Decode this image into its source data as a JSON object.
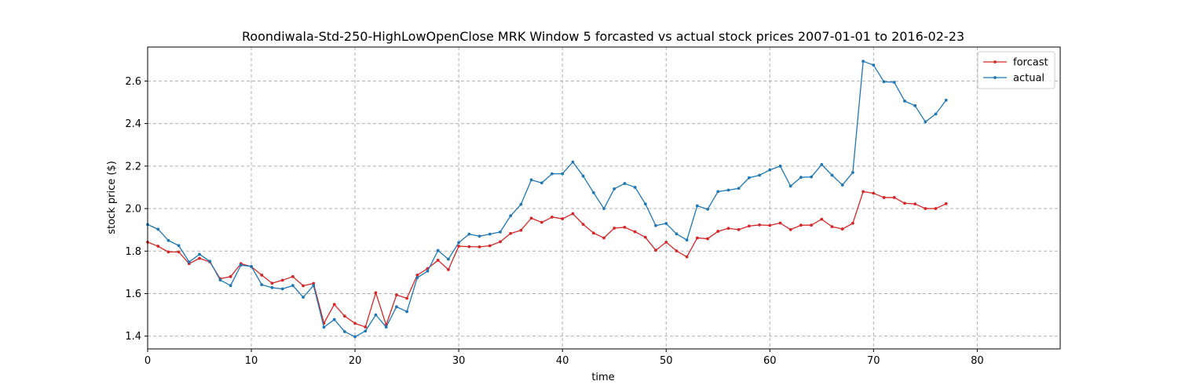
{
  "chart_data": {
    "type": "line",
    "title": "Roondiwala-Std-250-HighLowOpenClose MRK Window 5 forcasted vs actual stock prices 2007-01-01 to 2016-02-23",
    "xlabel": "time",
    "ylabel": "stock price ($)",
    "xlim": [
      0,
      88
    ],
    "ylim": [
      1.34,
      2.76
    ],
    "xticks": [
      0,
      10,
      20,
      30,
      40,
      50,
      60,
      70,
      80
    ],
    "yticks": [
      1.4,
      1.6,
      1.8,
      2.0,
      2.2,
      2.4,
      2.6
    ],
    "xtick_labels": [
      "0",
      "10",
      "20",
      "30",
      "40",
      "50",
      "60",
      "70",
      "80"
    ],
    "ytick_labels": [
      "1.4",
      "1.6",
      "1.8",
      "2.0",
      "2.2",
      "2.4",
      "2.6"
    ],
    "grid": true,
    "legend_position": "top-right",
    "series": [
      {
        "name": "forcast",
        "color": "#d62728",
        "values": [
          1.842,
          1.823,
          1.796,
          1.796,
          1.741,
          1.766,
          1.749,
          1.67,
          1.68,
          1.741,
          1.727,
          1.687,
          1.649,
          1.663,
          1.68,
          1.637,
          1.648,
          1.461,
          1.549,
          1.494,
          1.46,
          1.443,
          1.604,
          1.452,
          1.594,
          1.578,
          1.687,
          1.718,
          1.757,
          1.713,
          1.823,
          1.821,
          1.82,
          1.825,
          1.844,
          1.883,
          1.898,
          1.955,
          1.935,
          1.96,
          1.952,
          1.976,
          1.926,
          1.885,
          1.862,
          1.908,
          1.912,
          1.891,
          1.865,
          1.804,
          1.842,
          1.801,
          1.773,
          1.862,
          1.858,
          1.893,
          1.907,
          1.901,
          1.918,
          1.923,
          1.921,
          1.932,
          1.901,
          1.922,
          1.922,
          1.95,
          1.915,
          1.904,
          1.931,
          2.08,
          2.072,
          2.052,
          2.052,
          2.025,
          2.022,
          2.0,
          2.0,
          2.023
        ]
      },
      {
        "name": "actual",
        "color": "#1f77b4",
        "values": [
          1.925,
          1.903,
          1.85,
          1.826,
          1.749,
          1.785,
          1.752,
          1.664,
          1.638,
          1.734,
          1.728,
          1.642,
          1.628,
          1.622,
          1.638,
          1.583,
          1.638,
          1.442,
          1.478,
          1.421,
          1.397,
          1.424,
          1.5,
          1.443,
          1.538,
          1.515,
          1.675,
          1.706,
          1.803,
          1.762,
          1.84,
          1.88,
          1.87,
          1.88,
          1.89,
          1.966,
          2.02,
          2.135,
          2.121,
          2.164,
          2.164,
          2.219,
          2.153,
          2.075,
          2.0,
          2.093,
          2.118,
          2.1,
          2.022,
          1.92,
          1.93,
          1.881,
          1.852,
          2.013,
          1.997,
          2.08,
          2.087,
          2.095,
          2.145,
          2.157,
          2.182,
          2.2,
          2.106,
          2.147,
          2.149,
          2.207,
          2.157,
          2.111,
          2.17,
          2.693,
          2.675,
          2.597,
          2.594,
          2.506,
          2.484,
          2.408,
          2.445,
          2.51
        ]
      }
    ]
  }
}
